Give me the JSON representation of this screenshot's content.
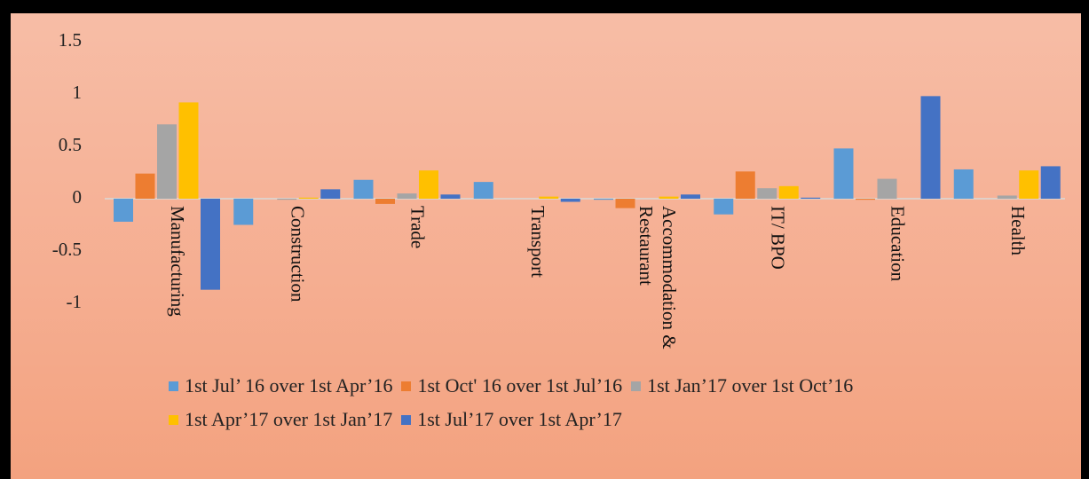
{
  "chart_data": {
    "type": "bar",
    "categories": [
      "Manufacturing",
      "Construction",
      "Trade",
      "Transport",
      "Accommodation & Restaurant",
      "IT/ BPO",
      "Education",
      "Health"
    ],
    "series": [
      {
        "name": "1st Jul’ 16 over 1st Apr’16",
        "color": "#5b9bd5",
        "values": [
          -0.22,
          -0.25,
          0.18,
          0.16,
          -0.01,
          -0.15,
          0.48,
          0.28
        ]
      },
      {
        "name": "1st Oct' 16 over 1st Jul’16",
        "color": "#ed7d31",
        "values": [
          0.24,
          0,
          -0.05,
          0,
          -0.09,
          0.26,
          -0.01,
          0
        ]
      },
      {
        "name": "1st Jan’17 over 1st Oct’16",
        "color": "#a5a5a5",
        "values": [
          0.71,
          -0.01,
          0.05,
          0,
          0,
          0.1,
          0.19,
          0.03
        ]
      },
      {
        "name": "1st Apr’17 over 1st Jan’17",
        "color": "#ffc000",
        "values": [
          0.92,
          0.01,
          0.27,
          0.02,
          0.02,
          0.12,
          0,
          0.27
        ]
      },
      {
        "name": "1st Jul’17 over 1st Apr’17",
        "color": "#4472c4",
        "values": [
          -0.87,
          0.09,
          0.04,
          -0.03,
          0.04,
          0.01,
          0.98,
          0.31
        ]
      }
    ],
    "ylim": [
      -1.5,
      1.5
    ],
    "yticks": [
      -1,
      -0.5,
      0,
      0.5,
      1,
      1.5
    ],
    "legend": "bottom"
  }
}
